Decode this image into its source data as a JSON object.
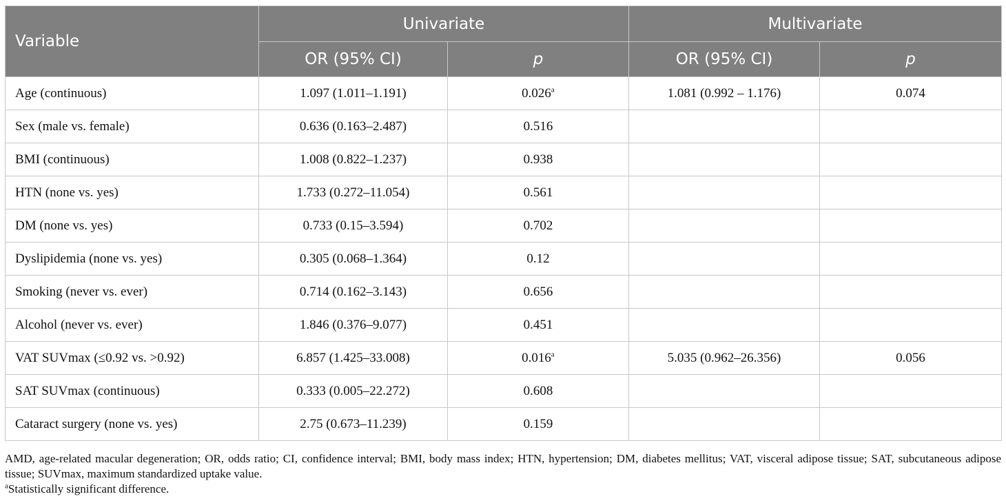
{
  "table": {
    "header": {
      "variable": "Variable",
      "univariate": "Univariate",
      "multivariate": "Multivariate",
      "or_label": "OR (95% CI)",
      "p_label": "p"
    },
    "rows": [
      {
        "variable": "Age (continuous)",
        "uni_or": "1.097 (1.011–1.191)",
        "uni_p": "0.026",
        "uni_p_sup": "a",
        "multi_or": "1.081 (0.992 – 1.176)",
        "multi_p": "0.074"
      },
      {
        "variable": "Sex (male vs. female)",
        "uni_or": "0.636 (0.163–2.487)",
        "uni_p": "0.516",
        "uni_p_sup": "",
        "multi_or": "",
        "multi_p": ""
      },
      {
        "variable": "BMI (continuous)",
        "uni_or": "1.008 (0.822–1.237)",
        "uni_p": "0.938",
        "uni_p_sup": "",
        "multi_or": "",
        "multi_p": ""
      },
      {
        "variable": "HTN (none vs. yes)",
        "uni_or": "1.733 (0.272–11.054)",
        "uni_p": "0.561",
        "uni_p_sup": "",
        "multi_or": "",
        "multi_p": ""
      },
      {
        "variable": "DM (none vs. yes)",
        "uni_or": "0.733 (0.15–3.594)",
        "uni_p": "0.702",
        "uni_p_sup": "",
        "multi_or": "",
        "multi_p": ""
      },
      {
        "variable": "Dyslipidemia (none vs. yes)",
        "uni_or": "0.305 (0.068–1.364)",
        "uni_p": "0.12",
        "uni_p_sup": "",
        "multi_or": "",
        "multi_p": ""
      },
      {
        "variable": "Smoking (never vs. ever)",
        "uni_or": "0.714 (0.162–3.143)",
        "uni_p": "0.656",
        "uni_p_sup": "",
        "multi_or": "",
        "multi_p": ""
      },
      {
        "variable": "Alcohol (never vs. ever)",
        "uni_or": "1.846 (0.376–9.077)",
        "uni_p": "0.451",
        "uni_p_sup": "",
        "multi_or": "",
        "multi_p": ""
      },
      {
        "variable": "VAT SUVmax (≤0.92 vs. >0.92)",
        "uni_or": "6.857 (1.425–33.008)",
        "uni_p": "0.016",
        "uni_p_sup": "a",
        "multi_or": "5.035 (0.962–26.356)",
        "multi_p": "0.056"
      },
      {
        "variable": "SAT SUVmax (continuous)",
        "uni_or": "0.333 (0.005–22.272)",
        "uni_p": "0.608",
        "uni_p_sup": "",
        "multi_or": "",
        "multi_p": ""
      },
      {
        "variable": "Cataract surgery (none vs. yes)",
        "uni_or": "2.75 (0.673–11.239)",
        "uni_p": "0.159",
        "uni_p_sup": "",
        "multi_or": "",
        "multi_p": ""
      }
    ]
  },
  "footnotes": {
    "abbreviations": "AMD, age-related macular degeneration; OR, odds ratio; CI, confidence interval; BMI, body mass index; HTN, hypertension; DM, diabetes mellitus; VAT, visceral adipose tissue; SAT, subcutaneous adipose tissue; SUVmax, maximum standardized uptake value.",
    "sig_marker": "a",
    "sig_text": "Statistically significant difference."
  }
}
